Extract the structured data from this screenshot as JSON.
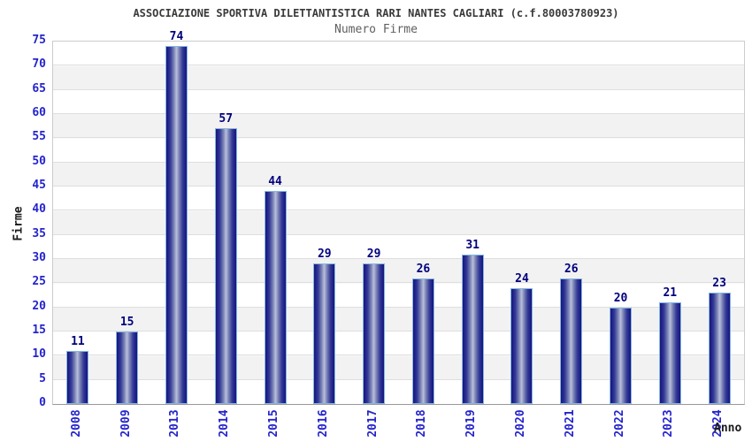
{
  "chart_data": {
    "type": "bar",
    "title": "ASSOCIAZIONE SPORTIVA DILETTANTISTICA RARI NANTES CAGLIARI (c.f.80003780923)",
    "subtitle": "Numero Firme",
    "xlabel": "Anno",
    "ylabel": "Firme",
    "categories": [
      "2008",
      "2009",
      "2013",
      "2014",
      "2015",
      "2016",
      "2017",
      "2018",
      "2019",
      "2020",
      "2021",
      "2022",
      "2023",
      "2024"
    ],
    "values": [
      11,
      15,
      74,
      57,
      44,
      29,
      29,
      26,
      31,
      24,
      26,
      20,
      21,
      23
    ],
    "ylim": [
      0,
      75
    ],
    "ytick_step": 5,
    "grid": "horizontal alternating bands every 5 units",
    "legend": "none",
    "colors": {
      "bar_dark": "#181875",
      "bar_mid": "#7a82b5",
      "bar_light": "#b9bfdc",
      "bar_border": "#85b7e2",
      "tick_label": "#2424cc",
      "value_label": "#00007d",
      "title": "#3a3a3a",
      "subtitle": "#5f5f5f",
      "axis_label": "#1a1a1a",
      "band_alt": "#f2f2f2",
      "grid_line": "#dedede"
    }
  }
}
